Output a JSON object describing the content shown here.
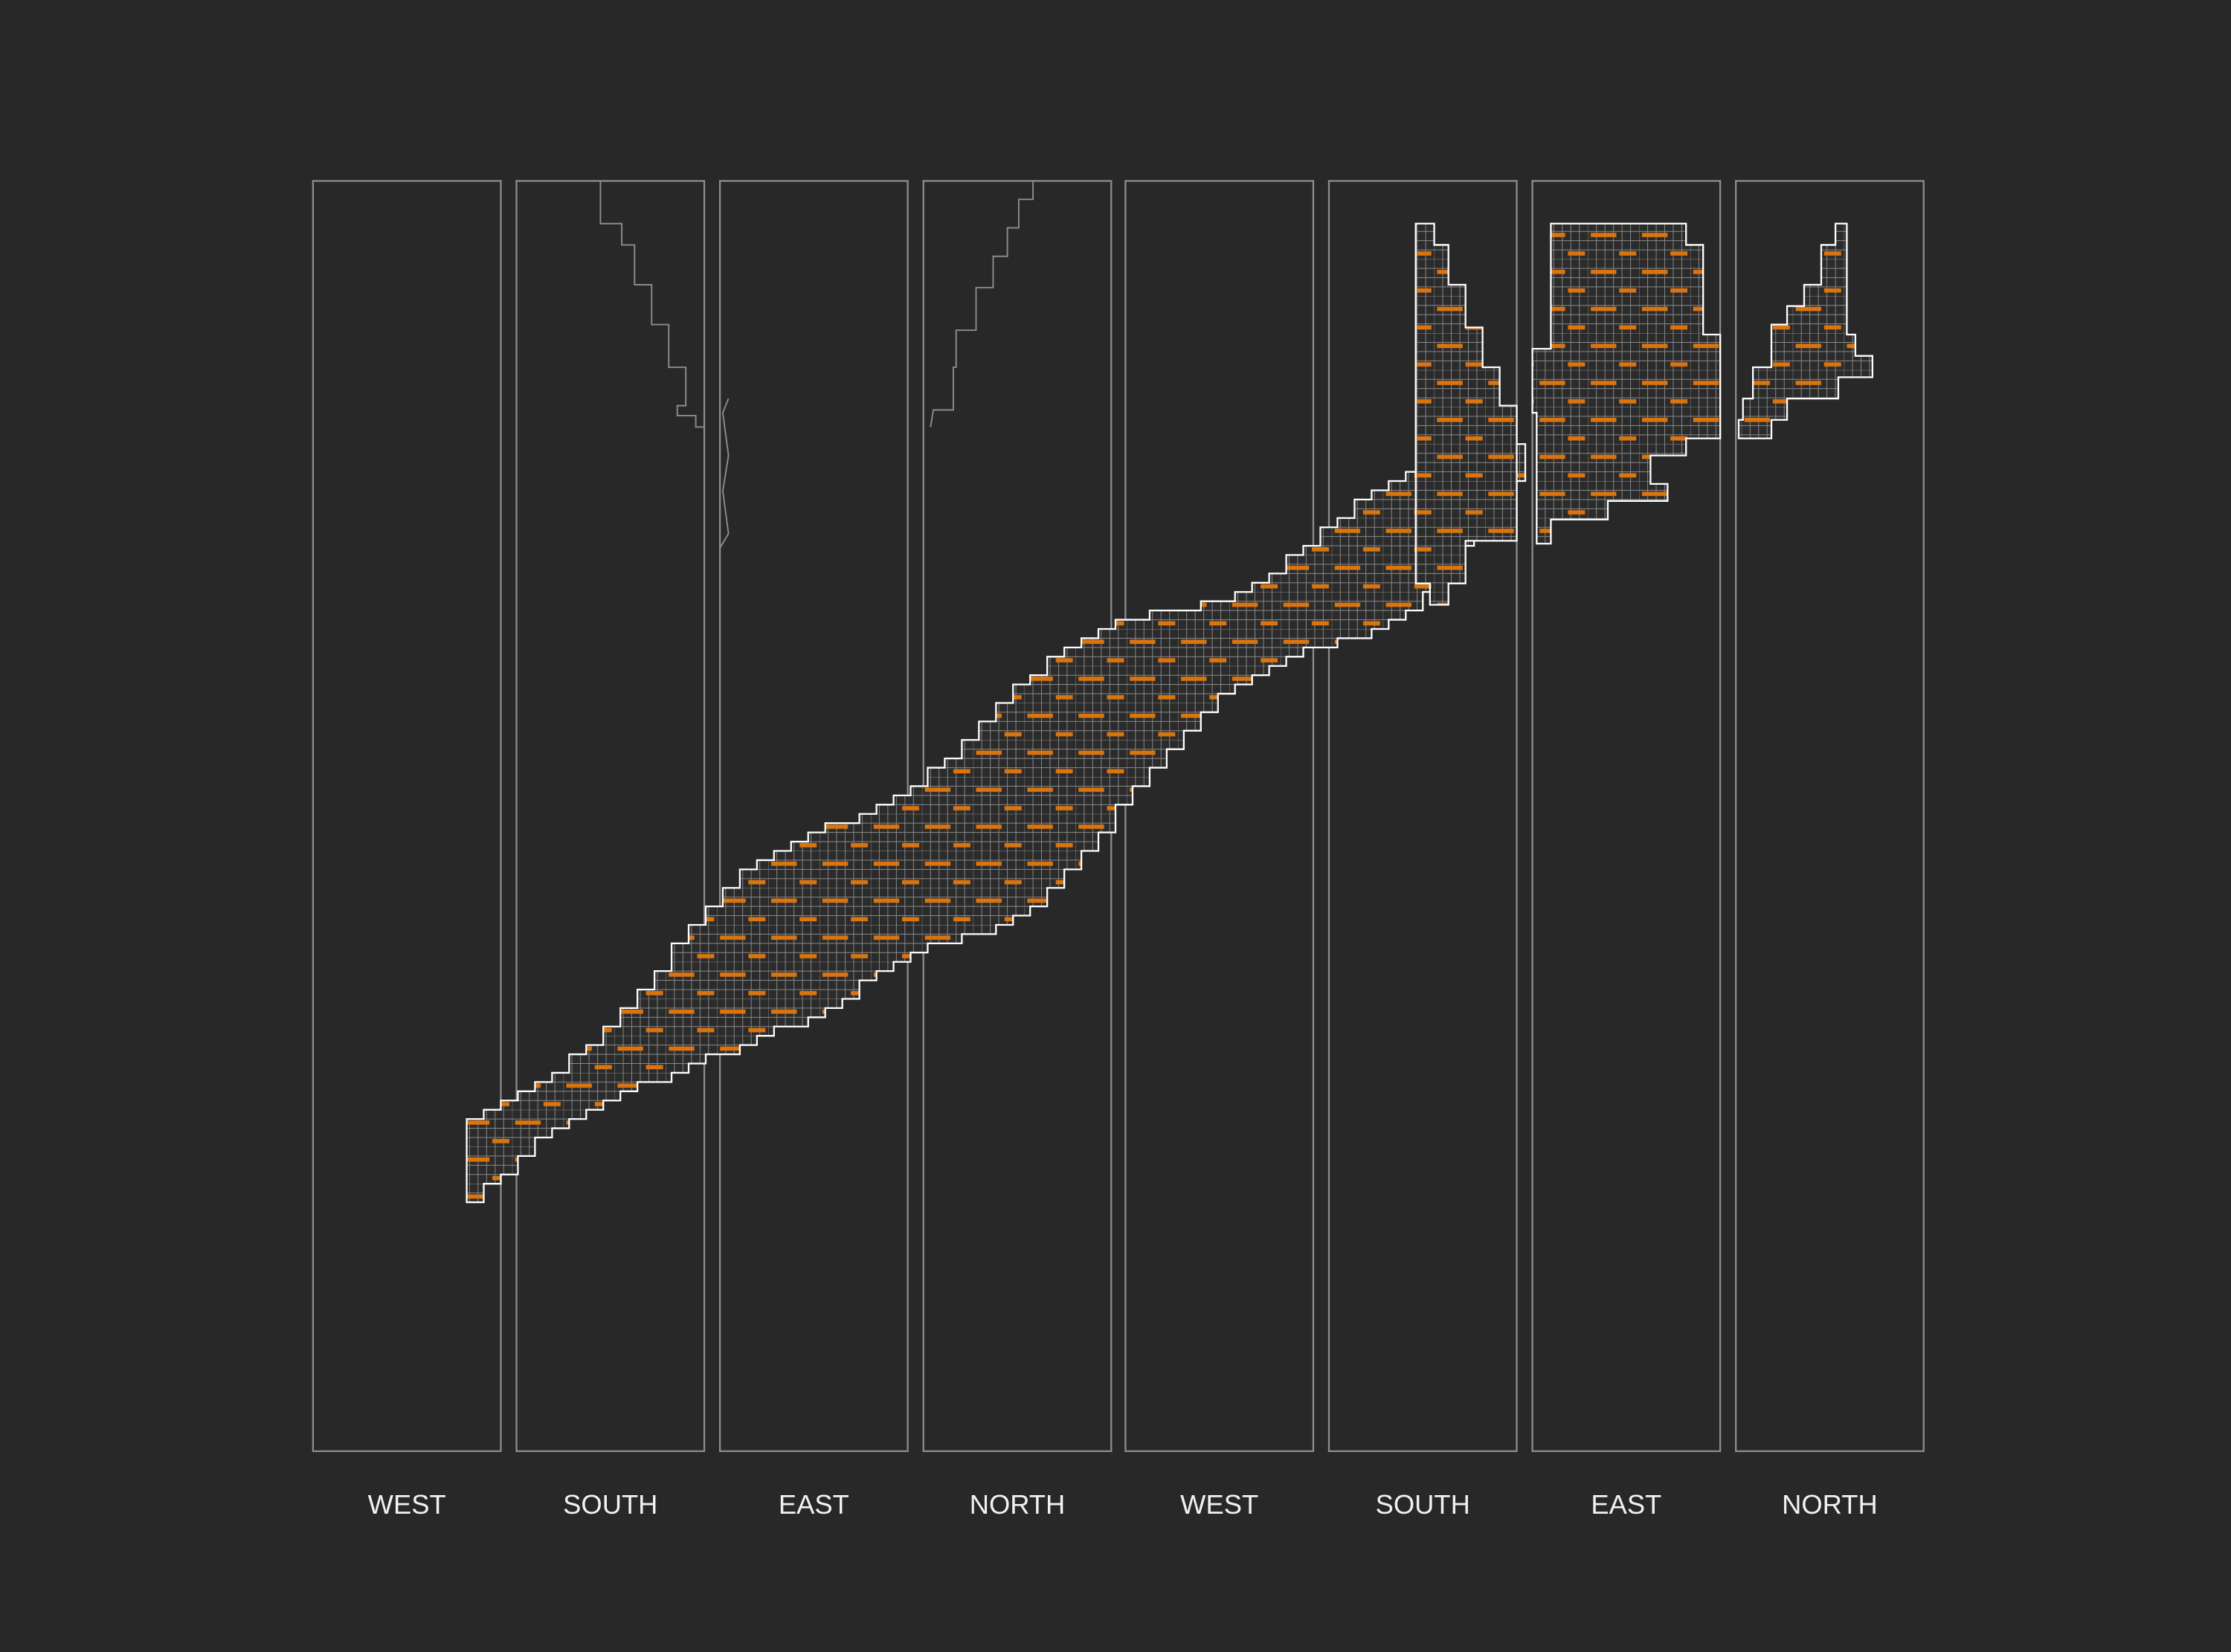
{
  "labels": [
    "WEST",
    "SOUTH",
    "EAST",
    "NORTH",
    "WEST",
    "SOUTH",
    "EAST",
    "NORTH"
  ]
}
